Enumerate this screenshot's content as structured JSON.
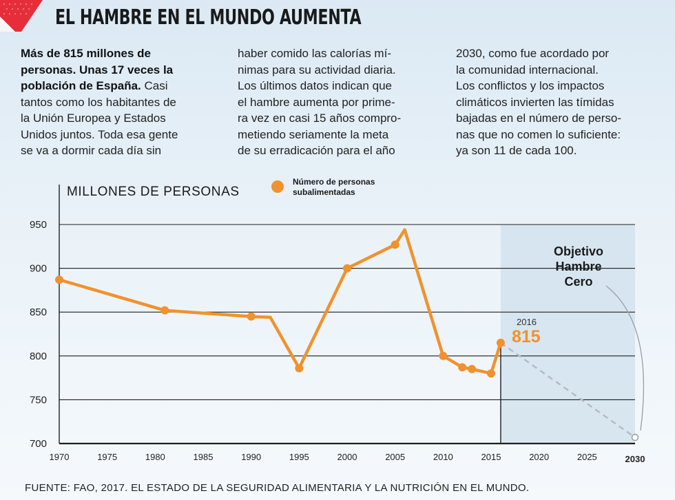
{
  "header": {
    "title": "EL HAMBRE EN EL MUNDO AUMENTA",
    "accent_color": "#e52e3a"
  },
  "article": {
    "col1_bold": [
      "Más de 815 millones de",
      "personas. Unas 17 veces la",
      "población de España."
    ],
    "col1_rest": " Casi",
    "col1_lines": [
      "tantos como los habitantes de",
      "la Unión Europea y Estados",
      "Unidos juntos. Toda esa gente",
      "se va a dormir cada día sin"
    ],
    "col2_lines": [
      "haber comido las calorías mí-",
      "nimas para su actividad diaria.",
      "Los últimos datos indican que",
      "el hambre aumenta por prime-",
      "ra vez en casi 15 años compro-",
      "metiendo seriamente la meta",
      "de su erradicación para el año"
    ],
    "col3_lines": [
      "2030, como fue acordado por",
      "la comunidad internacional.",
      "Los conflictos y los impactos",
      "climáticos invierten las tímidas",
      "bajadas en el número de perso-",
      "nas que no comen lo suficiente:",
      "ya son 11 de cada 100."
    ]
  },
  "chart_data": {
    "type": "line",
    "ylabel": "MILLONES DE PERSONAS",
    "legend": [
      "Número de personas",
      "subalimentadas"
    ],
    "series": [
      {
        "name": "Número de personas subalimentadas",
        "color": "#f0922e",
        "x": [
          1970,
          1981,
          1990,
          1992,
          1995,
          2000,
          2005,
          2006,
          2010,
          2012,
          2013,
          2015,
          2016
        ],
        "y": [
          887,
          852,
          845,
          844,
          786,
          900,
          927,
          944,
          800,
          787,
          785,
          780,
          815
        ],
        "markers": [
          true,
          true,
          true,
          false,
          true,
          true,
          true,
          false,
          true,
          true,
          true,
          true,
          true
        ]
      }
    ],
    "projection": {
      "x": [
        2016,
        2030
      ],
      "y": [
        815,
        707
      ],
      "color": "#b3bcc5",
      "style": "dashed"
    },
    "xlim": [
      1970,
      2030
    ],
    "ylim": [
      700,
      960
    ],
    "x_ticks": [
      "1970",
      "1975",
      "1980",
      "1985",
      "1990",
      "1995",
      "2000",
      "2005",
      "2010",
      "2015",
      "2020",
      "2025",
      "2030"
    ],
    "y_ticks": [
      "700",
      "750",
      "800",
      "850",
      "900",
      "950"
    ],
    "annotations": {
      "latest_year": "2016",
      "latest_value": "815",
      "goal_lines": [
        "Objetivo",
        "Hambre",
        "Cero"
      ]
    },
    "shaded_region": {
      "from": 2016,
      "to": 2030,
      "color": "#cfe0ec"
    }
  },
  "footer": {
    "source": "FUENTE: FAO, 2017. EL ESTADO DE LA SEGURIDAD ALIMENTARIA Y LA NUTRICIÓN EN EL MUNDO."
  }
}
